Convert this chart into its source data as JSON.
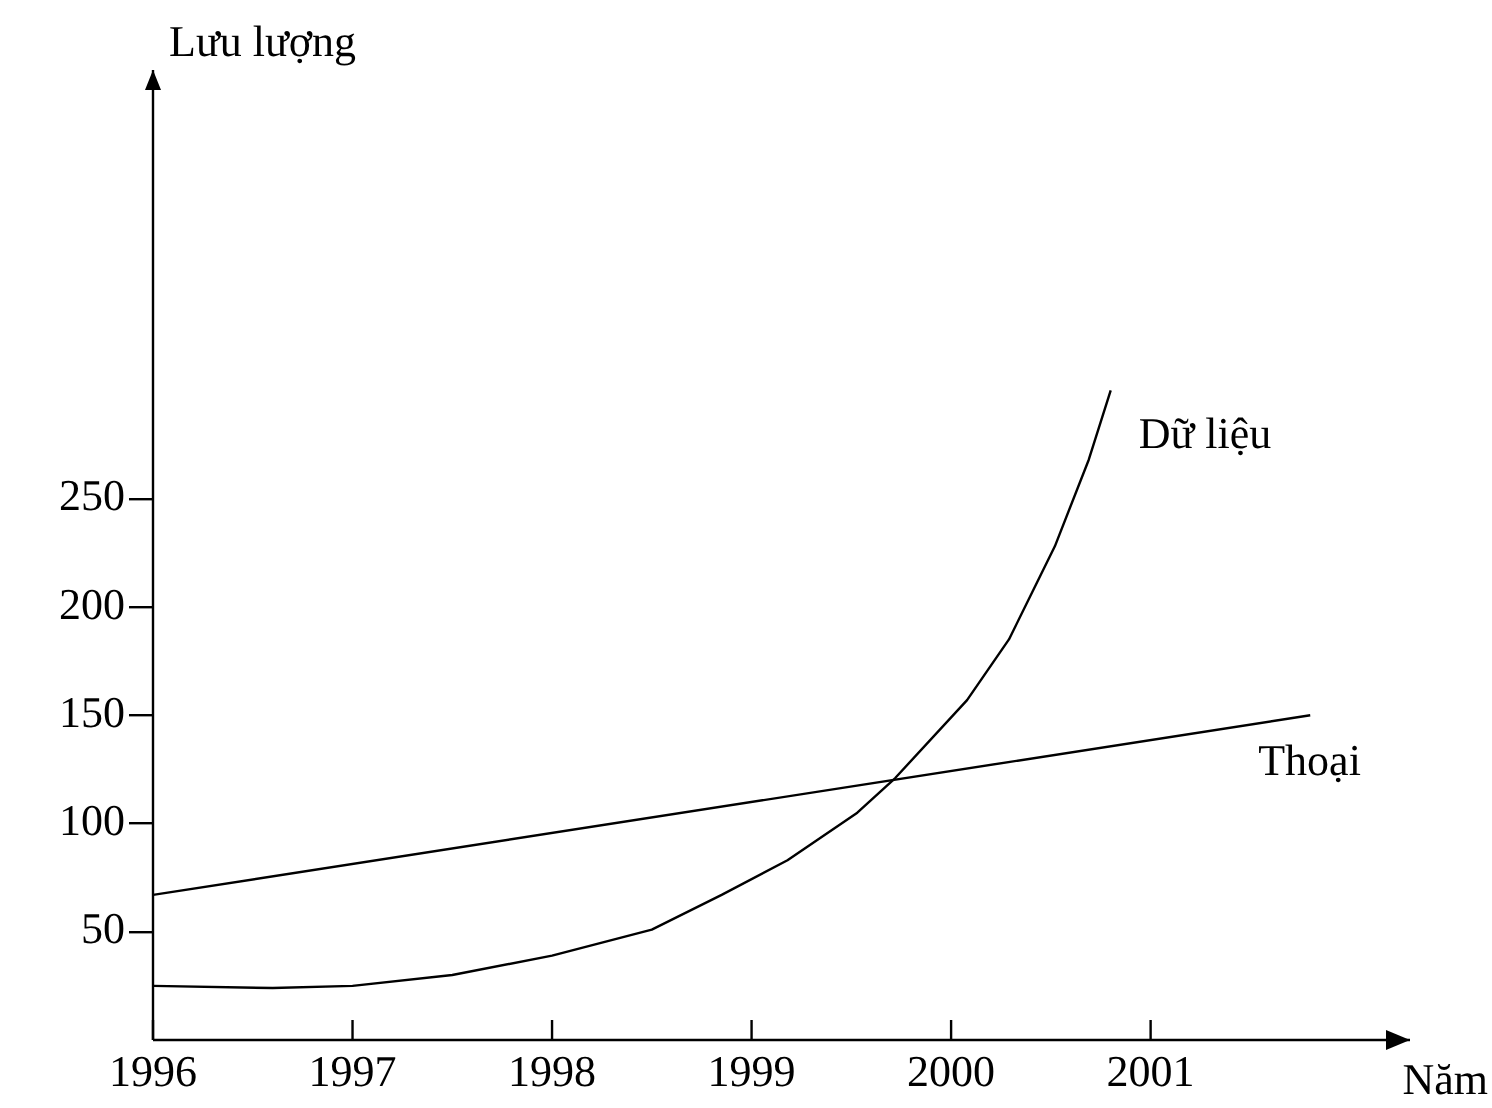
{
  "chart_data": {
    "type": "line",
    "xlabel": "Năm",
    "ylabel": "Lưu lượng",
    "xlim": [
      1996,
      2002.3
    ],
    "xticks": [
      1996,
      1997,
      1998,
      1999,
      2000,
      2001
    ],
    "ylim": [
      0,
      448
    ],
    "yticks": [
      50,
      100,
      150,
      200,
      250
    ],
    "legend": false,
    "marker": "none",
    "line_style": "solid",
    "series": [
      {
        "name": "Dữ liệu",
        "color": "#000000",
        "x": [
          1996,
          1996.6,
          1997,
          1997.5,
          1998,
          1998.5,
          1998.85,
          1999.18,
          1999.53,
          1999.72,
          2000.08,
          2000.29,
          2000.52,
          2000.69,
          2000.8
        ],
        "values": [
          25,
          24,
          25,
          30,
          39,
          51,
          67,
          83,
          105,
          121,
          157,
          185,
          228,
          268,
          300
        ]
      },
      {
        "name": "Thoại",
        "color": "#000000",
        "x": [
          1996,
          2001.8
        ],
        "values": [
          67,
          150
        ]
      }
    ]
  }
}
